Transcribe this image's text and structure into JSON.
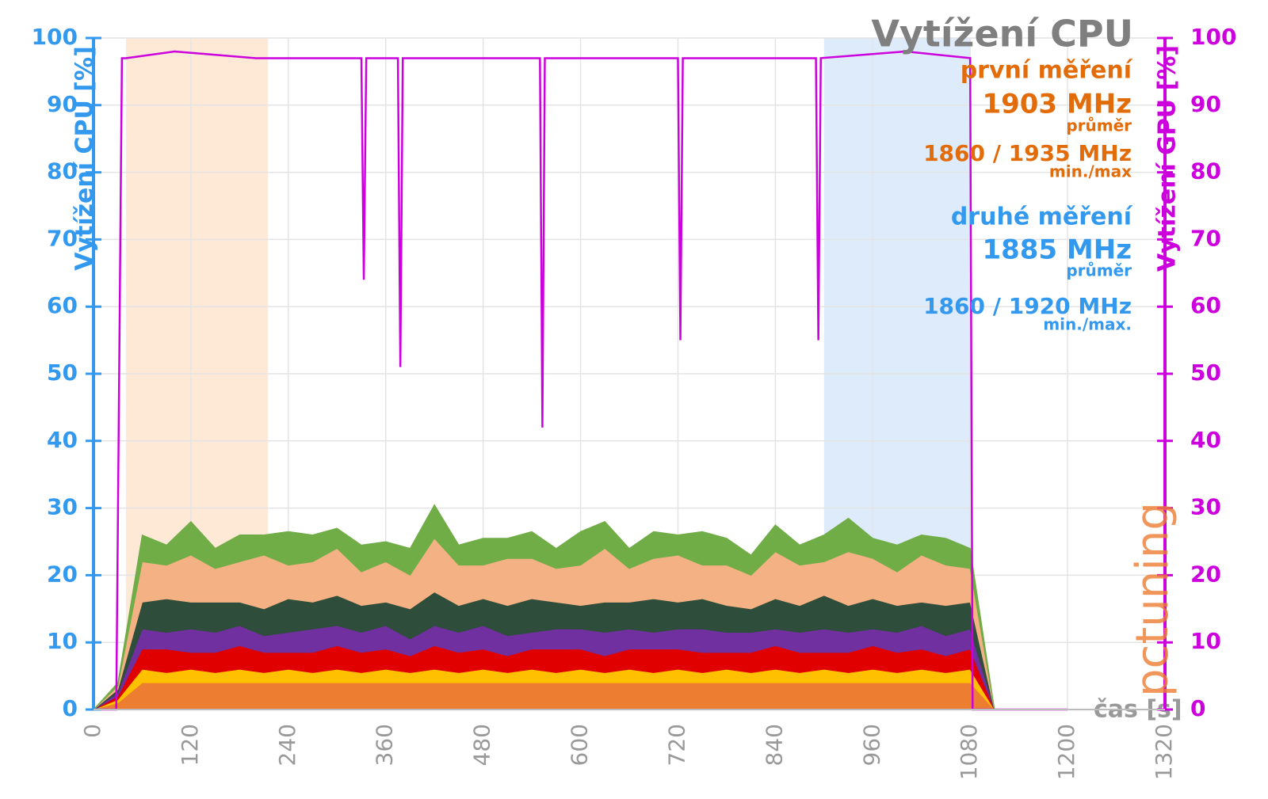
{
  "chart_data": {
    "type": "stacked-area",
    "title": "Vytížení CPU",
    "xlabel": "čas [s]",
    "ylabel": "Vytížení CPU [%]",
    "y2label": "Vytížení GPU [%]",
    "xlim": [
      0,
      1320
    ],
    "xticks": [
      0,
      120,
      240,
      360,
      480,
      600,
      720,
      840,
      960,
      1080,
      1200,
      1320
    ],
    "ylim": [
      0,
      100
    ],
    "yticks": [
      0,
      10,
      20,
      30,
      40,
      50,
      60,
      70,
      80,
      90,
      100
    ],
    "y2lim": [
      0,
      100
    ],
    "y2ticks": [
      0,
      10,
      20,
      30,
      40,
      50,
      60,
      70,
      80,
      90,
      100
    ],
    "grid": true,
    "axis_color": "#3399ee",
    "axis2_color": "#cc00dd",
    "bands": [
      {
        "from": 40,
        "to": 215,
        "color": "#fde3cc"
      },
      {
        "from": 900,
        "to": 1080,
        "color": "#d6e6fa"
      }
    ],
    "annotations": [
      {
        "text": "první měření",
        "color": "#e36c0a"
      },
      {
        "text": "1903 MHz",
        "color": "#e36c0a"
      },
      {
        "text": "průměr",
        "color": "#e36c0a"
      },
      {
        "text": "1860 / 1935 MHz",
        "color": "#e36c0a"
      },
      {
        "text": "min./max",
        "color": "#e36c0a"
      },
      {
        "text": "druhé měření",
        "color": "#3399ee"
      },
      {
        "text": "1885 MHz",
        "color": "#3399ee"
      },
      {
        "text": "průměr",
        "color": "#3399ee"
      },
      {
        "text": "1860 / 1920 MHz",
        "color": "#3399ee"
      },
      {
        "text": "min./max.",
        "color": "#3399ee"
      },
      {
        "text": "pctuning",
        "color": "#ed7d31"
      }
    ],
    "x": [
      0,
      30,
      60,
      90,
      120,
      150,
      180,
      210,
      240,
      270,
      300,
      330,
      360,
      390,
      420,
      450,
      480,
      510,
      540,
      570,
      600,
      630,
      660,
      690,
      720,
      750,
      780,
      810,
      840,
      870,
      900,
      930,
      960,
      990,
      1020,
      1050,
      1080,
      1110,
      1140,
      1170,
      1200
    ],
    "series": [
      {
        "color": "#ed7d31",
        "values": [
          0,
          1,
          4,
          4,
          4,
          4,
          4,
          4,
          4,
          4,
          4,
          4,
          4,
          4,
          4,
          4,
          4,
          4,
          4,
          4,
          4,
          4,
          4,
          4,
          4,
          4,
          4,
          4,
          4,
          4,
          4,
          4,
          4,
          4,
          4,
          4,
          4,
          0,
          0,
          0,
          0
        ]
      },
      {
        "color": "#ffc000",
        "values": [
          0,
          0.5,
          2,
          1.5,
          2,
          1.5,
          2,
          1.5,
          2,
          1.5,
          2,
          1.5,
          2,
          1.5,
          2,
          1.5,
          2,
          1.5,
          2,
          1.5,
          2,
          1.5,
          2,
          1.5,
          2,
          1.5,
          2,
          1.5,
          2,
          1.5,
          2,
          1.5,
          2,
          1.5,
          2,
          1.5,
          2,
          0,
          0,
          0,
          0
        ]
      },
      {
        "color": "#e00000",
        "values": [
          0,
          0.5,
          3,
          3.5,
          2.5,
          3,
          3.5,
          3,
          2.5,
          3,
          3.5,
          3,
          3,
          2.5,
          3.5,
          3,
          3,
          2.5,
          3,
          3.5,
          3,
          2.5,
          3,
          3.5,
          3,
          3,
          2.5,
          3,
          3.5,
          3,
          2.5,
          3,
          3.5,
          3,
          3,
          2.5,
          3,
          0,
          0,
          0,
          0
        ]
      },
      {
        "color": "#7030a0",
        "values": [
          0,
          0.5,
          3,
          2.5,
          3.5,
          3,
          3,
          2.5,
          3,
          3.5,
          3,
          3,
          3.5,
          2.5,
          3,
          3,
          3.5,
          3,
          2.5,
          3,
          3,
          3.5,
          3,
          2.5,
          3,
          3.5,
          3,
          3,
          2.5,
          3,
          3.5,
          3,
          2.5,
          3,
          3.5,
          3,
          3,
          0,
          0,
          0,
          0
        ]
      },
      {
        "color": "#2e4d3a",
        "values": [
          0,
          0.5,
          4,
          5,
          4,
          4.5,
          3.5,
          4,
          5,
          4,
          4.5,
          4,
          3.5,
          4.5,
          5,
          4,
          4,
          4.5,
          5,
          4,
          3.5,
          4.5,
          4,
          5,
          4,
          4.5,
          4,
          3.5,
          4.5,
          4,
          5,
          4,
          4.5,
          4,
          3.5,
          4.5,
          4,
          0,
          0,
          0,
          0
        ]
      },
      {
        "color": "#f4b183",
        "values": [
          0,
          0.5,
          6,
          5,
          7,
          5,
          6,
          8,
          5,
          6,
          7,
          5,
          6,
          5,
          8,
          6,
          5,
          7,
          6,
          5,
          6,
          8,
          5,
          6,
          7,
          5,
          6,
          5,
          7,
          6,
          5,
          8,
          6,
          5,
          7,
          6,
          5,
          0,
          0,
          0,
          0
        ]
      },
      {
        "color": "#70ad47",
        "values": [
          0,
          0.5,
          4,
          3,
          5,
          3,
          4,
          3,
          5,
          4,
          3,
          4,
          3,
          4,
          5,
          3,
          4,
          3,
          4,
          3,
          5,
          4,
          3,
          4,
          3,
          5,
          4,
          3,
          4,
          3,
          4,
          5,
          3,
          4,
          3,
          4,
          3,
          0,
          0,
          0,
          0
        ]
      },
      {
        "color": "#cc00dd",
        "axis": "y2",
        "type": "line",
        "x": [
          0,
          28,
          35,
          40,
          100,
          200,
          330,
          333,
          336,
          375,
          378,
          381,
          550,
          553,
          556,
          720,
          723,
          726,
          890,
          893,
          896,
          1000,
          1080,
          1083,
          1087,
          1100,
          1200
        ],
        "values": [
          0,
          0,
          97,
          97,
          98,
          97,
          97,
          64,
          97,
          97,
          51,
          97,
          97,
          42,
          97,
          97,
          55,
          97,
          97,
          55,
          97,
          98,
          97,
          0,
          0,
          0,
          0
        ]
      }
    ]
  }
}
